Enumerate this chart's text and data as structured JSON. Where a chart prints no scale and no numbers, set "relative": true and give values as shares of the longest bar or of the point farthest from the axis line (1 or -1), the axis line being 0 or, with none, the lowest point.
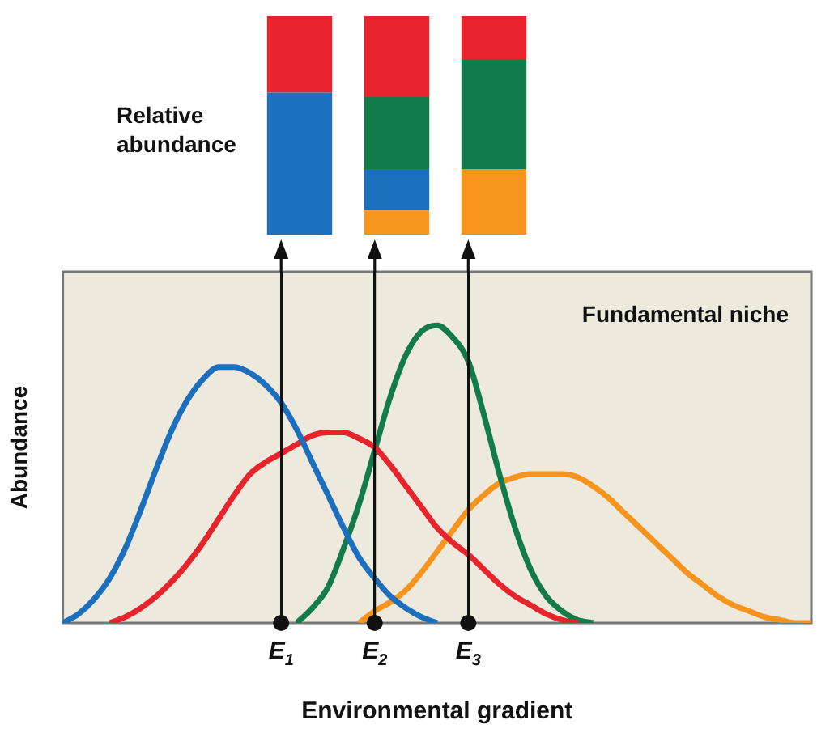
{
  "chart_data": [
    {
      "type": "bar",
      "stacked": true,
      "relative": true,
      "ylabel": "Relative abundance",
      "categories": [
        null,
        null,
        null
      ],
      "series": [
        {
          "color": "#f7941d",
          "values": [
            0,
            0.11,
            0.3
          ]
        },
        {
          "color": "#1b6fbd",
          "values": [
            0.65,
            0.19,
            0
          ]
        },
        {
          "color": "#137a4b",
          "values": [
            0,
            0.33,
            0.5
          ]
        },
        {
          "color": "#e8232b",
          "values": [
            0.35,
            0.37,
            0.2
          ]
        }
      ]
    },
    {
      "type": "line",
      "relative": true,
      "xlabel": "Environmental gradient",
      "ylabel": "Abundance",
      "annotations": [
        "Fundamental niche"
      ],
      "tick_labels": "x",
      "marker": "none",
      "grid": "x",
      "categories": [
        null,
        null,
        null,
        null,
        null,
        null,
        null,
        null,
        null,
        null,
        null,
        null,
        null,
        null,
        "E$_{1}$",
        null,
        null,
        null,
        null,
        null,
        "E$_{2}$",
        null,
        null,
        null,
        null,
        null,
        "E$_{3}$",
        null,
        null,
        null,
        null,
        null,
        null,
        null,
        null,
        null,
        null,
        null,
        null,
        null,
        null,
        null,
        null,
        null,
        null,
        null,
        null,
        null,
        null
      ],
      "series": [
        {
          "color": "#1b6fbd",
          "values": [
            0,
            0.03,
            0.08,
            0.15,
            0.25,
            0.38,
            0.52,
            0.65,
            0.75,
            0.82,
            0.86,
            0.86,
            0.84,
            0.8,
            0.74,
            0.65,
            0.54,
            0.43,
            0.32,
            0.22,
            0.15,
            0.09,
            0.05,
            0.02,
            0,
            null,
            null,
            null,
            null,
            null,
            null,
            null,
            null,
            null,
            null,
            null,
            null,
            null,
            null,
            null,
            null,
            null,
            null,
            null,
            null,
            null,
            null,
            null,
            null
          ]
        },
        {
          "color": "#e8232b",
          "values": [
            null,
            null,
            null,
            0,
            0.02,
            0.05,
            0.09,
            0.14,
            0.2,
            0.27,
            0.35,
            0.43,
            0.5,
            0.54,
            0.57,
            0.6,
            0.63,
            0.64,
            0.64,
            0.62,
            0.59,
            0.53,
            0.46,
            0.39,
            0.32,
            0.27,
            0.23,
            0.18,
            0.13,
            0.09,
            0.06,
            0.03,
            0.01,
            0,
            null,
            null,
            null,
            null,
            null,
            null,
            null,
            null,
            null,
            null,
            null,
            null,
            null,
            null,
            null
          ]
        },
        {
          "color": "#137a4b",
          "values": [
            null,
            null,
            null,
            null,
            null,
            null,
            null,
            null,
            null,
            null,
            null,
            null,
            null,
            null,
            null,
            0,
            0.05,
            0.12,
            0.25,
            0.4,
            0.58,
            0.76,
            0.9,
            0.98,
            1,
            0.96,
            0.88,
            0.7,
            0.5,
            0.32,
            0.18,
            0.09,
            0.04,
            0.01,
            0,
            null,
            null,
            null,
            null,
            null,
            null,
            null,
            null,
            null,
            null,
            null,
            null,
            null,
            null
          ]
        },
        {
          "color": "#f7941d",
          "values": [
            null,
            null,
            null,
            null,
            null,
            null,
            null,
            null,
            null,
            null,
            null,
            null,
            null,
            null,
            null,
            null,
            null,
            null,
            null,
            0,
            0.04,
            0.07,
            0.11,
            0.17,
            0.24,
            0.31,
            0.38,
            0.43,
            0.47,
            0.49,
            0.5,
            0.5,
            0.5,
            0.49,
            0.46,
            0.42,
            0.37,
            0.32,
            0.27,
            0.22,
            0.17,
            0.13,
            0.09,
            0.06,
            0.04,
            0.02,
            0.01,
            0,
            0
          ]
        }
      ]
    }
  ]
}
